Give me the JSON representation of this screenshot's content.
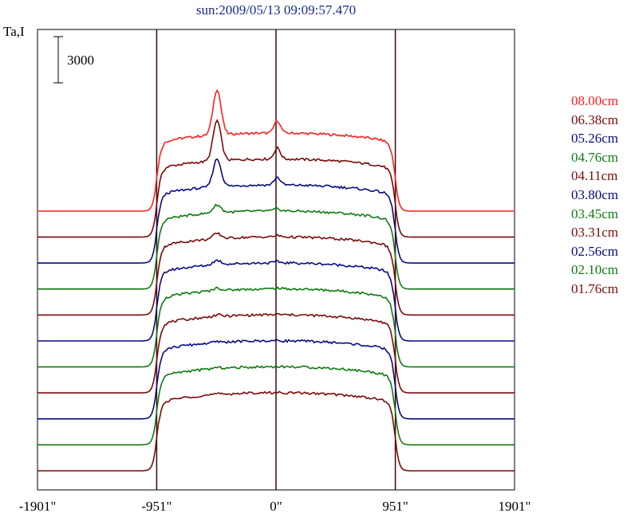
{
  "chart_data": {
    "type": "line",
    "title": "sun:2009/05/13 09:09:57.470",
    "ylabel": "Ta,I",
    "scale_bar_label": "3000",
    "x_ticks": [
      {
        "value": -1901,
        "label": "-1901\""
      },
      {
        "value": -951,
        "label": "-951\""
      },
      {
        "value": 0,
        "label": "0\""
      },
      {
        "value": 951,
        "label": "951\""
      },
      {
        "value": 1901,
        "label": "1901\""
      }
    ],
    "xlim": [
      -1901,
      1901
    ],
    "vertical_lines": [
      -951,
      0,
      951
    ],
    "grid": false,
    "legend_position": "right",
    "series": [
      {
        "name": "08.00cm",
        "color": "#ff2020",
        "stack_index": 10,
        "bright_point": 2.6
      },
      {
        "name": "06.38cm",
        "color": "#7a0a0a",
        "stack_index": 9,
        "bright_point": 2.3
      },
      {
        "name": "05.26cm",
        "color": "#0a0a80",
        "stack_index": 8,
        "bright_point": 1.6
      },
      {
        "name": "04.76cm",
        "color": "#107a10",
        "stack_index": 7,
        "bright_point": 0.45
      },
      {
        "name": "04.11cm",
        "color": "#7a0a0a",
        "stack_index": 6,
        "bright_point": 0.3
      },
      {
        "name": "03.80cm",
        "color": "#0a0a80",
        "stack_index": 5,
        "bright_point": 0.25
      },
      {
        "name": "03.45cm",
        "color": "#107a10",
        "stack_index": 4,
        "bright_point": 0.15
      },
      {
        "name": "03.31cm",
        "color": "#7a0a0a",
        "stack_index": 3,
        "bright_point": 0.1
      },
      {
        "name": "02.56cm",
        "color": "#0a0a80",
        "stack_index": 2,
        "bright_point": 0.05
      },
      {
        "name": "02.10cm",
        "color": "#107a10",
        "stack_index": 1,
        "bright_point": 0.05
      },
      {
        "name": "01.76cm",
        "color": "#7a0a0a",
        "stack_index": 0,
        "bright_point": 0.03
      }
    ]
  }
}
